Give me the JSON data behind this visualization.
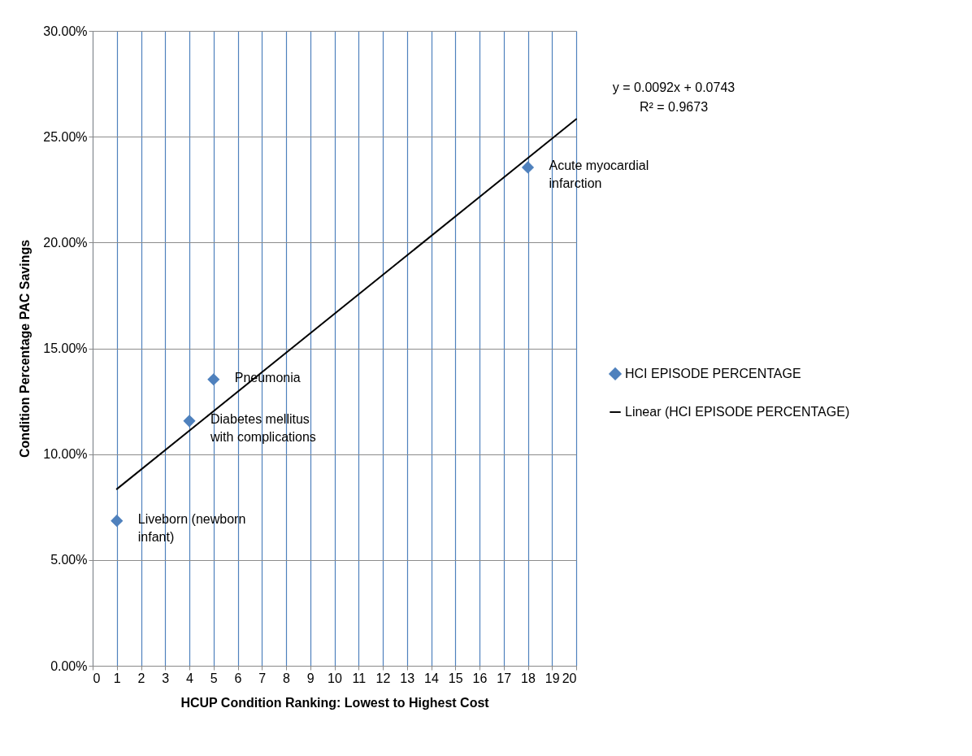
{
  "chart_data": {
    "type": "scatter",
    "xlabel": "HCUP Condition Ranking: Lowest to Highest Cost",
    "ylabel": "Condition Percentage PAC Savings",
    "xlim": [
      0,
      20
    ],
    "xticks": [
      0,
      1,
      2,
      3,
      4,
      5,
      6,
      7,
      8,
      9,
      10,
      11,
      12,
      13,
      14,
      15,
      16,
      17,
      18,
      19,
      20
    ],
    "ylim": [
      0,
      0.3
    ],
    "yticks": [
      {
        "value": 0,
        "label": "0.00%"
      },
      {
        "value": 0.05,
        "label": "5.00%"
      },
      {
        "value": 0.1,
        "label": "10.00%"
      },
      {
        "value": 0.15,
        "label": "15.00%"
      },
      {
        "value": 0.2,
        "label": "20.00%"
      },
      {
        "value": 0.25,
        "label": "25.00%"
      },
      {
        "value": 0.3,
        "label": "30.00%"
      }
    ],
    "grid": true,
    "legend": "right",
    "series": [
      {
        "name": "HCI EPISODE PERCENTAGE",
        "type": "scatter",
        "color": "#4f81bd",
        "marker": "diamond",
        "x": [
          1,
          4,
          5,
          18
        ],
        "values": [
          0.0685,
          0.1157,
          0.1353,
          0.2355
        ]
      },
      {
        "name": "Linear (HCI EPISODE PERCENTAGE)",
        "type": "line",
        "color": "#000000",
        "line_style": "solid",
        "marker": "none",
        "x": [
          1,
          20
        ],
        "values": [
          0.0835,
          0.2583
        ]
      }
    ],
    "annotations": [
      {
        "text": "Liveborn (newborn infant)",
        "x": 1,
        "y": 0.0685
      },
      {
        "text": "Diabetes mellitus with complications",
        "x": 4,
        "y": 0.1157
      },
      {
        "text": "Pneumonia",
        "x": 5,
        "y": 0.1353
      },
      {
        "text": "Acute myocardial infarction",
        "x": 18,
        "y": 0.2355
      },
      "y = 0.0092x + 0.0743",
      "R² = 0.9673"
    ]
  }
}
